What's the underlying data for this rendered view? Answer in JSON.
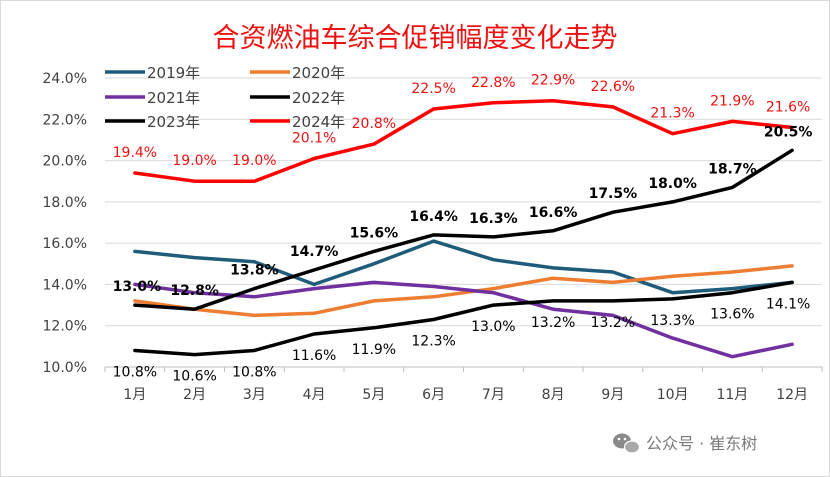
{
  "chart_data": {
    "type": "line",
    "title": "合资燃油车综合促销幅度变化走势",
    "categories": [
      "1月",
      "2月",
      "3月",
      "4月",
      "5月",
      "6月",
      "7月",
      "8月",
      "9月",
      "10月",
      "11月",
      "12月"
    ],
    "ylim": [
      10.0,
      24.0
    ],
    "yticks": [
      "10.0%",
      "12.0%",
      "14.0%",
      "16.0%",
      "18.0%",
      "20.0%",
      "22.0%",
      "24.0%"
    ],
    "grid": "horizontal",
    "legend": "top-left",
    "series": [
      {
        "name": "2019年",
        "color": "#1f5c7a",
        "values": [
          15.6,
          15.3,
          15.1,
          14.0,
          15.0,
          16.1,
          15.2,
          14.8,
          14.6,
          13.6,
          13.8,
          14.1
        ]
      },
      {
        "name": "2020年",
        "color": "#ed7d31",
        "values": [
          13.2,
          12.8,
          12.5,
          12.6,
          13.2,
          13.4,
          13.8,
          14.3,
          14.1,
          14.4,
          14.6,
          14.9
        ]
      },
      {
        "name": "2021年",
        "color": "#7030a0",
        "values": [
          14.0,
          13.6,
          13.4,
          13.8,
          14.1,
          13.9,
          13.6,
          12.8,
          12.5,
          11.4,
          10.5,
          11.1
        ]
      },
      {
        "name": "2022年",
        "color": "#000000",
        "values": [
          10.8,
          10.6,
          10.8,
          11.6,
          11.9,
          12.3,
          13.0,
          13.2,
          13.2,
          13.3,
          13.6,
          14.1
        ],
        "labels": [
          "10.8%",
          "10.6%",
          "10.8%",
          "11.6%",
          "11.9%",
          "12.3%",
          "13.0%",
          "13.2%",
          "13.2%",
          "13.3%",
          "13.6%",
          "14.1%"
        ]
      },
      {
        "name": "2023年",
        "color": "#000000",
        "values": [
          13.0,
          12.8,
          13.8,
          14.7,
          15.6,
          16.4,
          16.3,
          16.6,
          17.5,
          18.0,
          18.7,
          20.5
        ],
        "labels": [
          "13.0%",
          "12.8%",
          "13.8%",
          "14.7%",
          "15.6%",
          "16.4%",
          "16.3%",
          "16.6%",
          "17.5%",
          "18.0%",
          "18.7%",
          "20.5%"
        ]
      },
      {
        "name": "2024年",
        "color": "#ff0000",
        "values": [
          19.4,
          19.0,
          19.0,
          20.1,
          20.8,
          22.5,
          22.8,
          22.9,
          22.6,
          21.3,
          21.9,
          21.6
        ],
        "labels": [
          "19.4%",
          "19.0%",
          "19.0%",
          "20.1%",
          "20.8%",
          "22.5%",
          "22.8%",
          "22.9%",
          "22.6%",
          "21.3%",
          "21.9%",
          "21.6%"
        ]
      }
    ]
  },
  "watermark": {
    "text": "公众号 · 崔东树",
    "icon": "wechat-icon"
  }
}
